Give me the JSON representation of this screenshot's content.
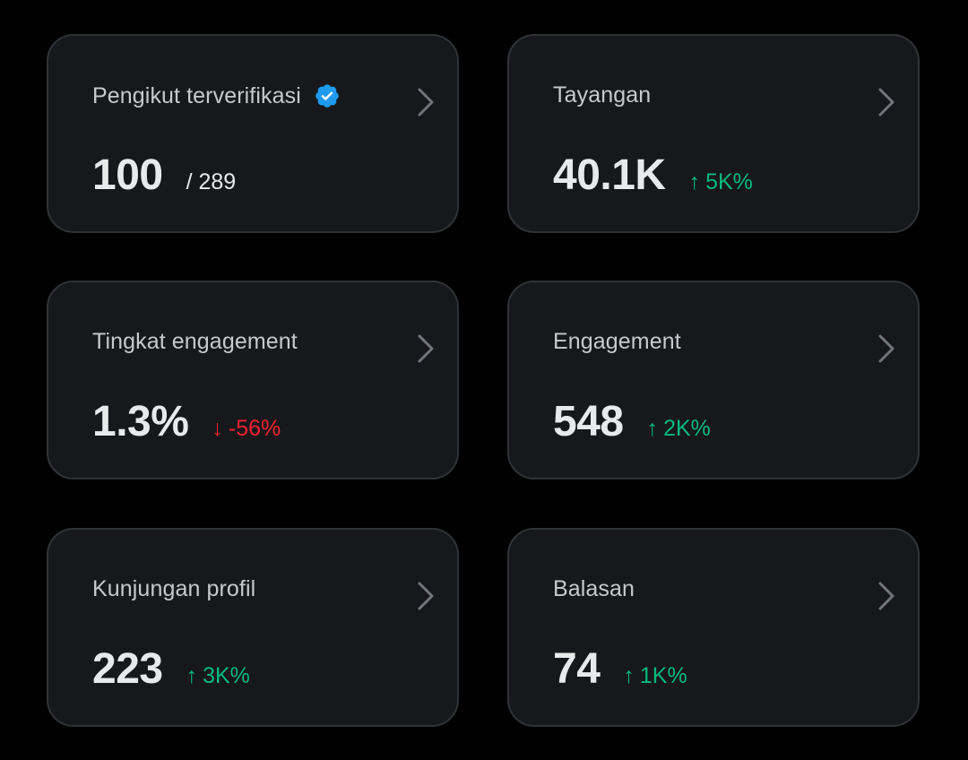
{
  "colors": {
    "background": "#000000",
    "card": "#16181c",
    "border": "#2f3336",
    "label": "#c7cacd",
    "value": "#e7e9ea",
    "up": "#00ba7c",
    "down": "#f4212e",
    "verified": "#1d9bf0",
    "chevron": "#71767b"
  },
  "cards": [
    {
      "label": "Pengikut terverifikasi",
      "value": "100",
      "suffix": "/ 289",
      "verified_icon": "verified-badge-icon"
    },
    {
      "label": "Tayangan",
      "value": "40.1K",
      "change": {
        "arrow": "↑",
        "text": "5K%",
        "direction": "up"
      }
    },
    {
      "label": "Tingkat engagement",
      "value": "1.3%",
      "change": {
        "arrow": "↓",
        "text": "-56%",
        "direction": "down"
      }
    },
    {
      "label": "Engagement",
      "value": "548",
      "change": {
        "arrow": "↑",
        "text": "2K%",
        "direction": "up"
      }
    },
    {
      "label": "Kunjungan profil",
      "value": "223",
      "change": {
        "arrow": "↑",
        "text": "3K%",
        "direction": "up"
      }
    },
    {
      "label": "Balasan",
      "value": "74",
      "change": {
        "arrow": "↑",
        "text": "1K%",
        "direction": "up"
      }
    }
  ]
}
